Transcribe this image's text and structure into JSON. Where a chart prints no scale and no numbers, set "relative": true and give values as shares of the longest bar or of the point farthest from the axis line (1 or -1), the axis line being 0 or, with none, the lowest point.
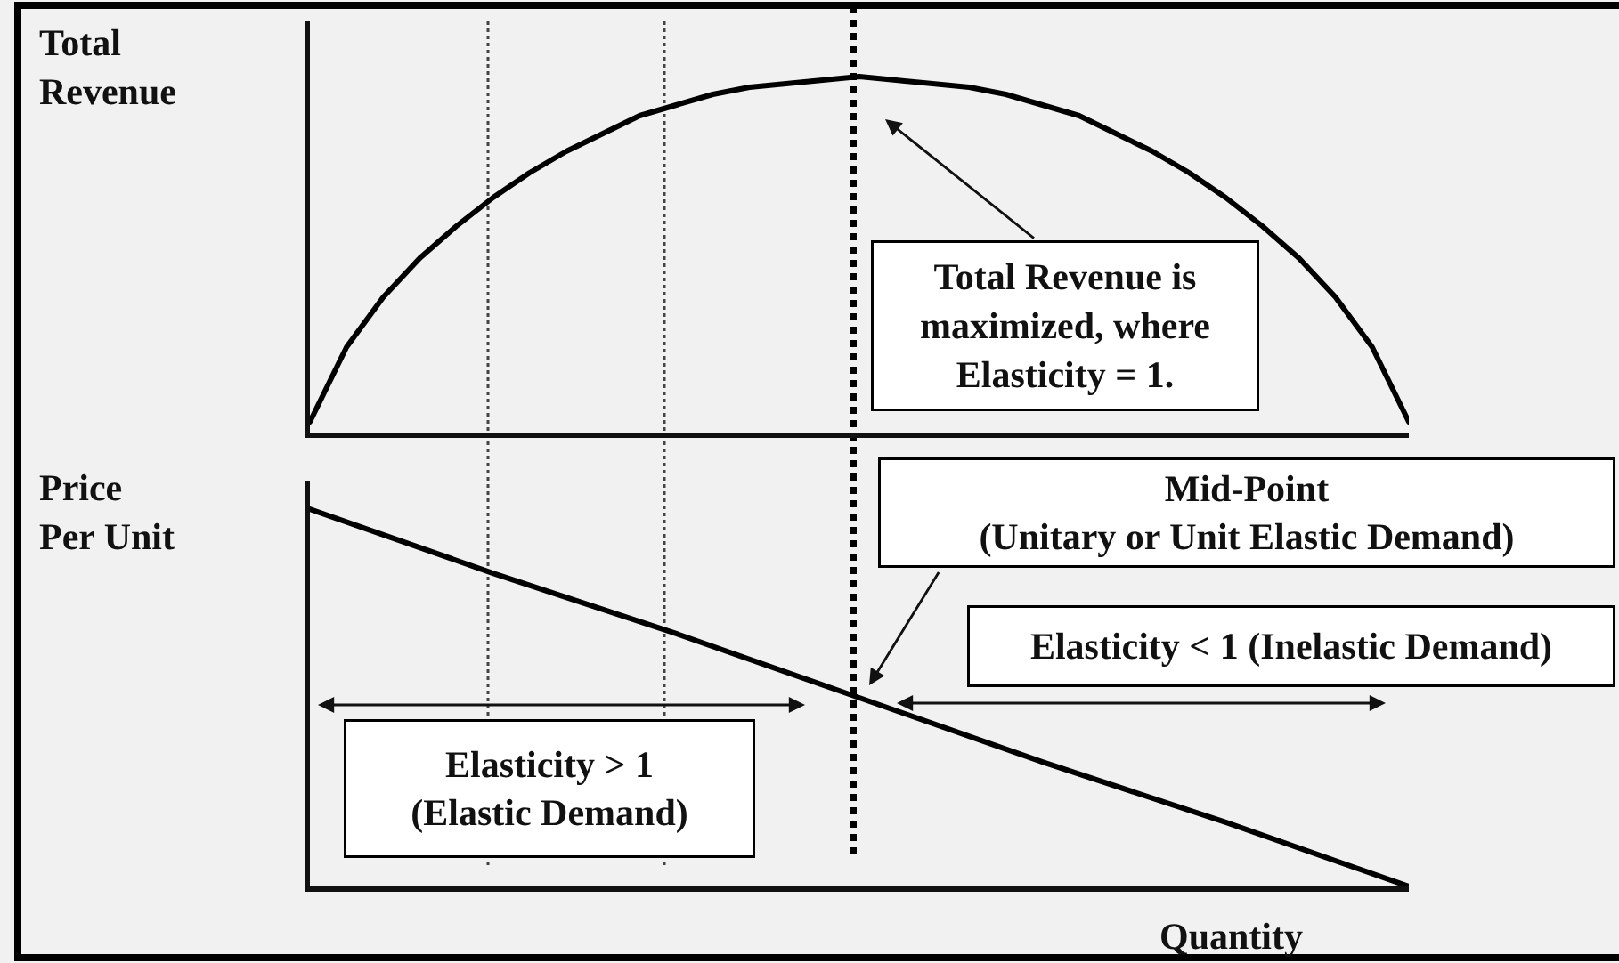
{
  "chart_data": [
    {
      "type": "line",
      "ylabel": "Total\nRevenue",
      "categories": [
        null,
        null,
        null,
        null,
        null,
        null,
        null,
        null,
        null,
        null,
        null,
        null,
        null,
        null,
        null,
        null,
        null,
        null,
        null,
        null,
        null,
        null,
        null,
        null,
        null,
        null,
        null,
        null,
        null,
        null,
        null
      ],
      "series": [
        {
          "color": "#000000",
          "values": [
            0.03,
            0.24,
            0.38,
            0.49,
            0.58,
            0.66,
            0.73,
            0.79,
            0.84,
            0.89,
            0.92,
            0.95,
            0.97,
            0.98,
            0.99,
            1,
            0.99,
            0.98,
            0.97,
            0.95,
            0.92,
            0.89,
            0.84,
            0.79,
            0.73,
            0.66,
            0.58,
            0.49,
            0.38,
            0.24,
            0.03
          ]
        }
      ],
      "relative": true,
      "annotations": [
        "Total Revenue is\nmaximized, where\nElasticity = 1."
      ]
    },
    {
      "type": "line",
      "ylabel": "Price\nPer Unit",
      "xlabel": "Quantity",
      "categories": [
        null,
        null,
        null,
        null,
        null,
        null,
        null
      ],
      "series": [
        {
          "color": "#000000",
          "values": [
            1,
            0.83,
            0.67,
            0.5,
            0.33,
            0.17,
            0
          ]
        }
      ],
      "relative": true,
      "annotations": [
        "Mid-Point\n(Unitary or Unit Elastic Demand)",
        "Elasticity > 1\n(Elastic Demand)",
        "Elasticity < 1 (Inelastic Demand)"
      ]
    }
  ]
}
